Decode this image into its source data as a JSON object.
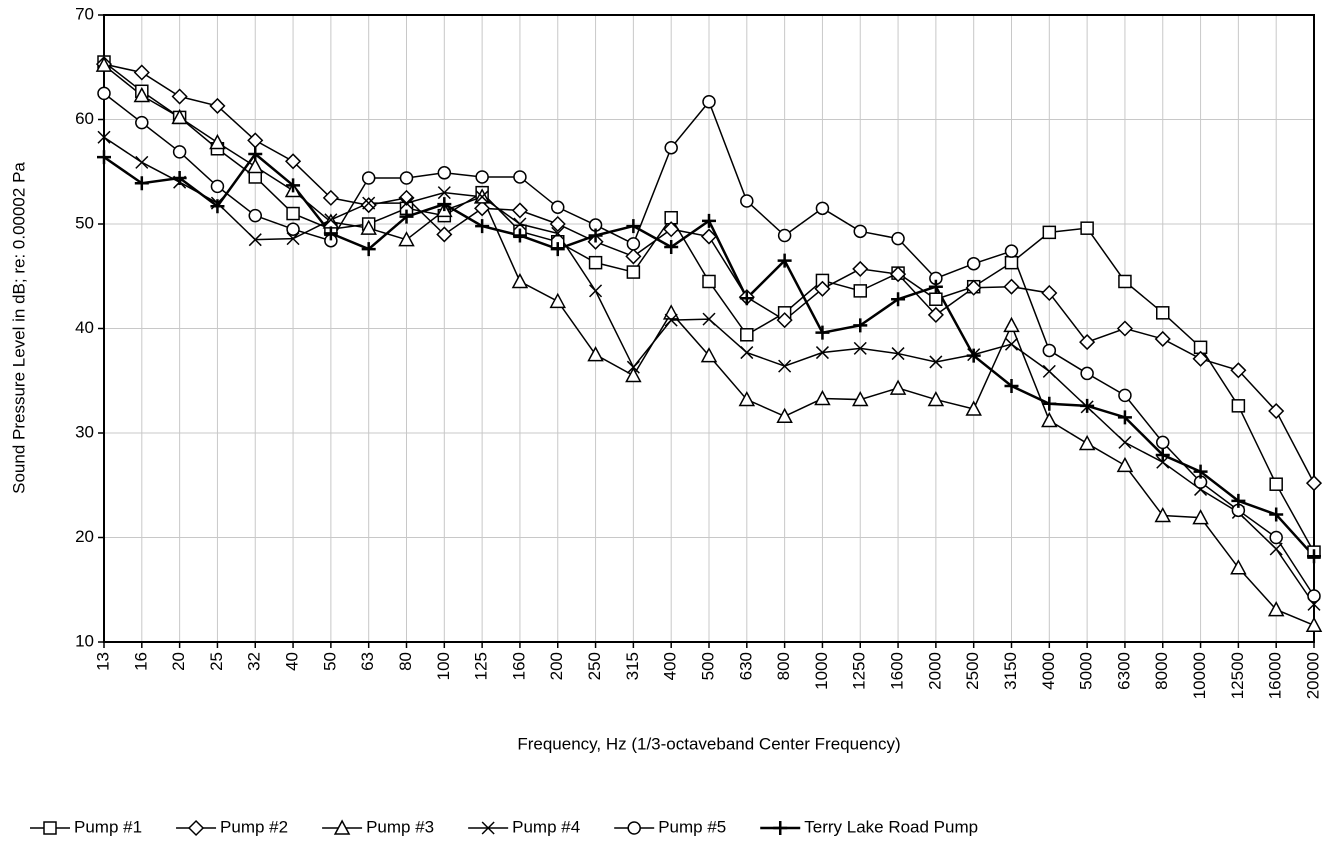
{
  "chart_data": {
    "type": "line",
    "xlabel": "Frequency, Hz (1/3-octaveband Center Frequency)",
    "ylabel": "Sound Pressure Level in dB; re: 0.00002 Pa",
    "categories": [
      "13",
      "16",
      "20",
      "25",
      "32",
      "40",
      "50",
      "63",
      "80",
      "100",
      "125",
      "160",
      "200",
      "250",
      "315",
      "400",
      "500",
      "630",
      "800",
      "1000",
      "1250",
      "1600",
      "2000",
      "2500",
      "3150",
      "4000",
      "5000",
      "6300",
      "8000",
      "10000",
      "12500",
      "16000",
      "20000"
    ],
    "ylim": [
      10,
      70
    ],
    "yticks": [
      10,
      20,
      30,
      40,
      50,
      60,
      70
    ],
    "grid": true,
    "legend": "bottom",
    "series": [
      {
        "name": "Pump #1",
        "color": "#000000",
        "marker": "square",
        "values": [
          65.5,
          62.7,
          60.2,
          57.2,
          54.5,
          51,
          49.5,
          50,
          51.5,
          50.8,
          53,
          49.3,
          48.3,
          46.3,
          45.4,
          50.6,
          44.5,
          39.4,
          41.5,
          44.6,
          43.6,
          45.3,
          42.8,
          44,
          46.3,
          49.2,
          49.6,
          44.5,
          41.5,
          38.2,
          32.6,
          25.1,
          18.6
        ]
      },
      {
        "name": "Pump #2",
        "color": "#000000",
        "marker": "diamond",
        "values": [
          65.3,
          64.5,
          62.2,
          61.3,
          58,
          56,
          52.5,
          51.8,
          52.5,
          49,
          51.5,
          51.3,
          50,
          48.3,
          46.9,
          49.5,
          48.8,
          43,
          40.8,
          43.8,
          45.7,
          45.2,
          41.3,
          43.9,
          44,
          43.4,
          38.7,
          40,
          39,
          37.1,
          36,
          32.1,
          25.2
        ]
      },
      {
        "name": "Pump #3",
        "color": "#000000",
        "marker": "triangle",
        "values": [
          65.2,
          62.3,
          60.2,
          57.8,
          55.5,
          53.2,
          50.2,
          49.6,
          48.5,
          51.3,
          52.6,
          44.5,
          42.6,
          37.5,
          35.5,
          41.5,
          37.4,
          33.2,
          31.6,
          33.3,
          33.2,
          34.3,
          33.2,
          32.3,
          40.3,
          31.2,
          29,
          26.9,
          22.1,
          21.9,
          17.1,
          13.1,
          11.6
        ]
      },
      {
        "name": "Pump #4",
        "color": "#000000",
        "marker": "x",
        "values": [
          58.3,
          55.9,
          54,
          52,
          48.5,
          48.6,
          50.4,
          52,
          52,
          53,
          52.6,
          50,
          49.1,
          43.6,
          36.3,
          40.8,
          40.9,
          37.7,
          36.4,
          37.7,
          38.1,
          37.6,
          36.8,
          37.5,
          38.5,
          35.9,
          32.5,
          29.1,
          27.2,
          24.6,
          22.4,
          18.9,
          13.6
        ]
      },
      {
        "name": "Pump #5",
        "color": "#000000",
        "marker": "circle",
        "values": [
          62.5,
          59.7,
          56.9,
          53.6,
          50.8,
          49.5,
          48.4,
          54.4,
          54.4,
          54.9,
          54.5,
          54.5,
          51.6,
          49.9,
          48.1,
          57.3,
          61.7,
          52.2,
          48.9,
          51.5,
          49.3,
          48.6,
          44.8,
          46.2,
          47.4,
          37.9,
          35.7,
          33.6,
          29.1,
          25.3,
          22.6,
          20,
          14.4
        ]
      },
      {
        "name": "Terry Lake Road Pump",
        "color": "#000000",
        "marker": "plus",
        "values": [
          56.4,
          53.9,
          54.4,
          51.7,
          56.7,
          53.7,
          49.1,
          47.6,
          50.7,
          51.9,
          49.8,
          48.9,
          47.6,
          48.9,
          49.8,
          47.8,
          50.3,
          42.9,
          46.5,
          39.6,
          40.3,
          42.8,
          44,
          37.4,
          34.5,
          32.8,
          32.6,
          31.5,
          27.9,
          26.3,
          23.5,
          22.2,
          18.2
        ]
      }
    ]
  }
}
